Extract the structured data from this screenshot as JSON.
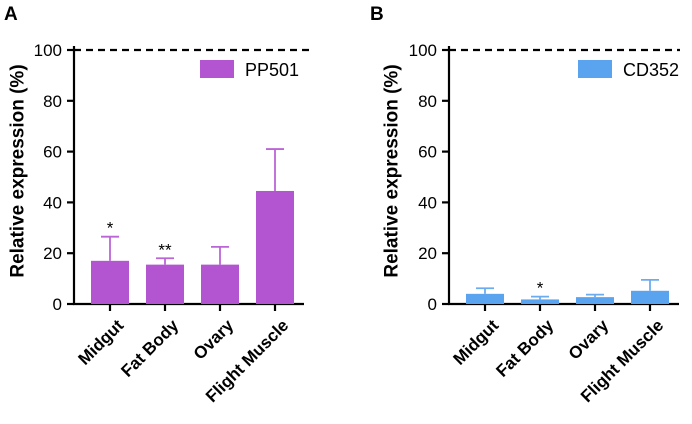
{
  "figure": {
    "panels": [
      {
        "panel_label": "A"
      },
      {
        "panel_label": "B"
      }
    ]
  },
  "chart_data": [
    {
      "type": "bar",
      "panel": "A",
      "legend": "PP501",
      "ylabel": "Relative expression (%)",
      "xlabel": "",
      "ylim": [
        0,
        100
      ],
      "yticks": [
        0,
        20,
        40,
        60,
        80,
        100
      ],
      "reference_line": 100,
      "categories": [
        "Midgut",
        "Fat Body",
        "Ovary",
        "Flight Muscle"
      ],
      "values": [
        17,
        15.5,
        15.5,
        44.5
      ],
      "errors": [
        9.5,
        2.5,
        7,
        16.5
      ],
      "significance": [
        "*",
        "**",
        "",
        ""
      ],
      "color": "#b354d1"
    },
    {
      "type": "bar",
      "panel": "B",
      "legend": "CD352",
      "ylabel": "Relative expression (%)",
      "xlabel": "",
      "ylim": [
        0,
        100
      ],
      "yticks": [
        0,
        20,
        40,
        60,
        80,
        100
      ],
      "reference_line": 100,
      "categories": [
        "Midgut",
        "Fat Body",
        "Ovary",
        "Flight Muscle"
      ],
      "values": [
        4,
        1.8,
        2.7,
        5.2
      ],
      "errors": [
        2.2,
        1.1,
        1,
        4.3
      ],
      "significance": [
        "",
        "*",
        "",
        ""
      ],
      "color": "#5aa3ee"
    }
  ]
}
